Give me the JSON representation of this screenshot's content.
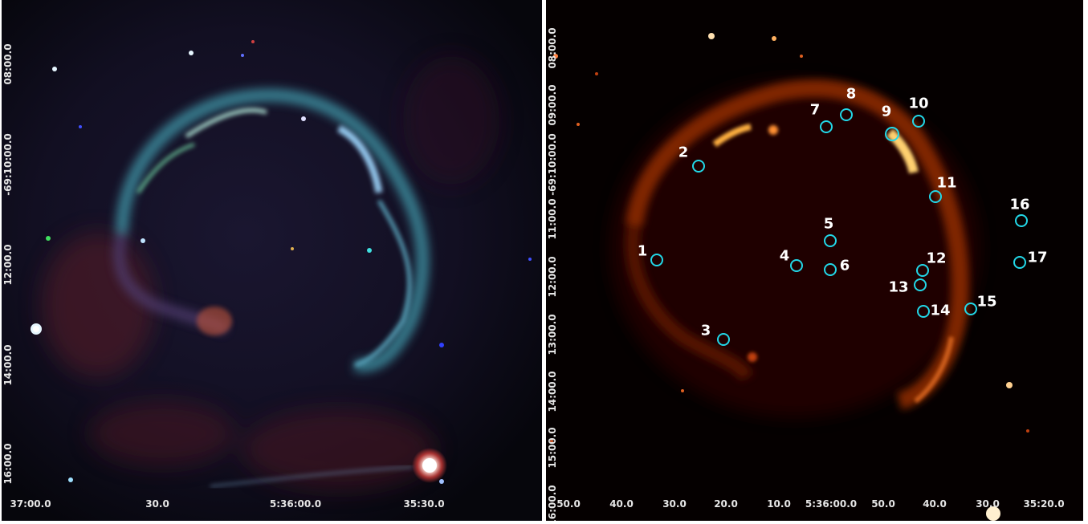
{
  "left_panel": {
    "y_ticks": [
      "08:00.0",
      "-69:10:00.0",
      "12:00.0",
      "14:00.0",
      "16:00.0"
    ],
    "x_ticks": [
      "37:00.0",
      "30.0",
      "5:36:00.0",
      "35:30.0"
    ]
  },
  "right_panel": {
    "y_ticks": [
      "08:00.0",
      "09:00.0",
      "-69:10:00.0",
      "11:00.0",
      "12:00.0",
      "13:00.0",
      "14:00.0",
      "15:00.0",
      "16:00.0"
    ],
    "x_ticks": [
      "50.0",
      "40.0",
      "30.0",
      "20.0",
      "10.0",
      "5:36:00.0",
      "50.0",
      "40.0",
      "30.0",
      "35:20.0"
    ],
    "sources": [
      {
        "label": "1"
      },
      {
        "label": "2"
      },
      {
        "label": "3"
      },
      {
        "label": "4"
      },
      {
        "label": "5"
      },
      {
        "label": "6"
      },
      {
        "label": "7"
      },
      {
        "label": "8"
      },
      {
        "label": "9"
      },
      {
        "label": "10"
      },
      {
        "label": "11"
      },
      {
        "label": "12"
      },
      {
        "label": "13"
      },
      {
        "label": "14"
      },
      {
        "label": "15"
      },
      {
        "label": "16"
      },
      {
        "label": "17"
      }
    ],
    "circle_color": "#22d8e8"
  }
}
